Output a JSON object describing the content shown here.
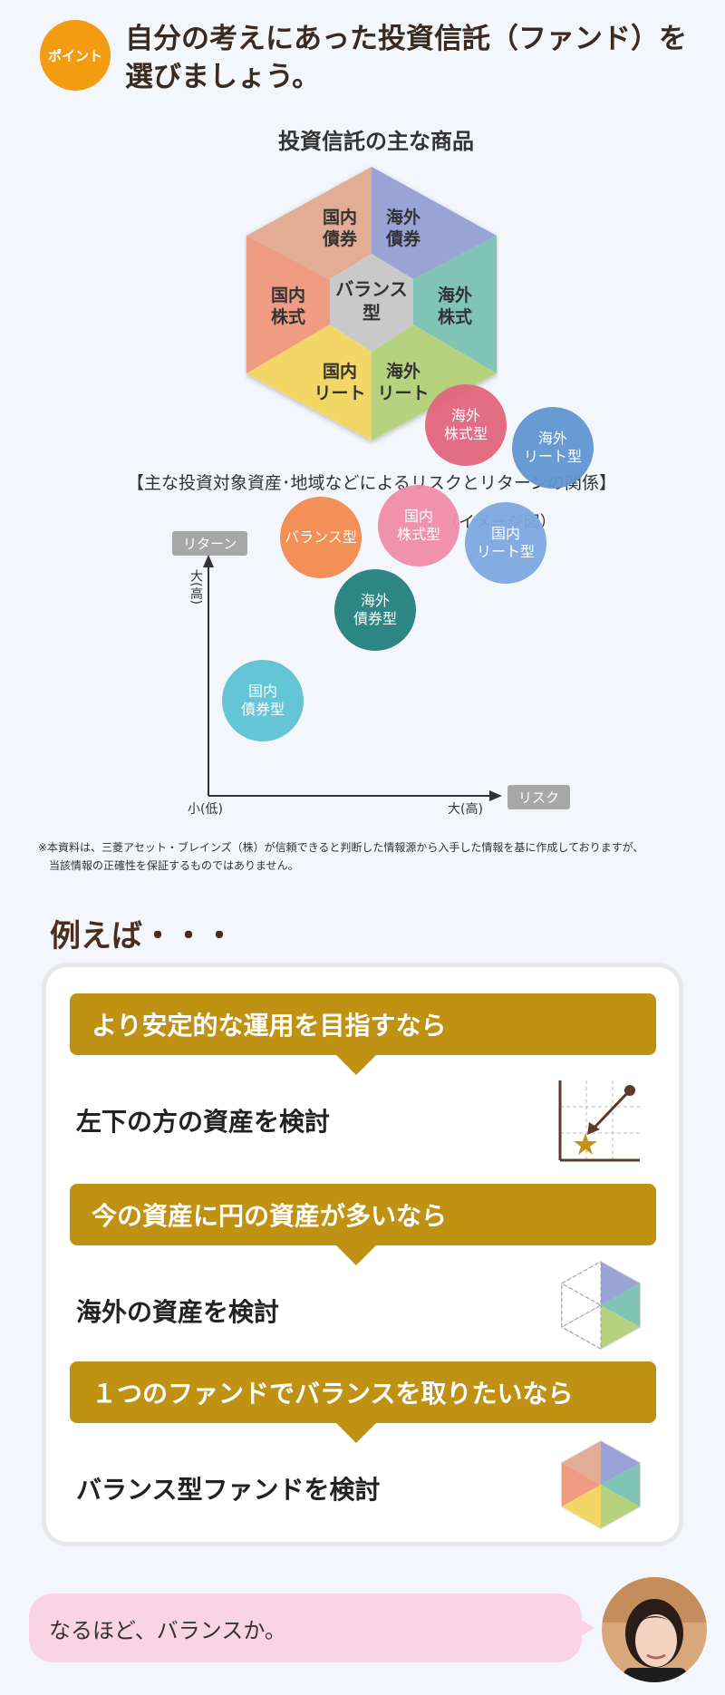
{
  "header": {
    "badge": "ポイント",
    "title_line1": "自分の考えにあった投資信託（ファンド）を",
    "title_line2": "選びましょう。"
  },
  "hexagon": {
    "title": "投資信託の主な商品",
    "center": [
      "バランス",
      "型"
    ],
    "segments": [
      {
        "lines": [
          "国内",
          "債券"
        ],
        "color": "#e3ad95"
      },
      {
        "lines": [
          "海外",
          "債券"
        ],
        "color": "#9aa3d6"
      },
      {
        "lines": [
          "海外",
          "株式"
        ],
        "color": "#7fc4b5"
      },
      {
        "lines": [
          "海外",
          "リート"
        ],
        "color": "#b6d27f"
      },
      {
        "lines": [
          "国内",
          "リート"
        ],
        "color": "#f2d766"
      },
      {
        "lines": [
          "国内",
          "株式"
        ],
        "color": "#ef9c83"
      }
    ]
  },
  "chart": {
    "caption": "【主な投資対象資産･地域などによるリスクとリターンの関係】",
    "image_label": "（イメージ図）",
    "y_axis_tag": "リターン",
    "x_axis_tag": "リスク",
    "y_high": "大(高)",
    "origin_low": "小(低)",
    "x_high": "大(高)"
  },
  "chart_data": {
    "type": "scatter",
    "xlabel": "リスク",
    "ylabel": "リターン",
    "points": [
      {
        "label": "国内債券型",
        "x": 1.5,
        "y": 1.7,
        "color": "#5cc3d3"
      },
      {
        "label": "バランス型",
        "x": 3.1,
        "y": 4.6,
        "color": "#f28b4f"
      },
      {
        "label": "海外債券型",
        "x": 4.6,
        "y": 3.3,
        "color": "#23807e"
      },
      {
        "label": "国内株式型",
        "x": 5.8,
        "y": 4.8,
        "color": "#f08ca9"
      },
      {
        "label": "国内リート型",
        "x": 8.2,
        "y": 4.5,
        "color": "#7ea8e0"
      },
      {
        "label": "海外株式型",
        "x": 7.1,
        "y": 6.6,
        "color": "#e3667d"
      },
      {
        "label": "海外リート型",
        "x": 9.5,
        "y": 6.2,
        "color": "#6196d1"
      }
    ]
  },
  "note": {
    "line1": "※本資料は、三菱アセット・ブレインズ（株）が信頼できると判断した情報源から入手した情報を基に作成しておりますが、",
    "line2": "当該情報の正確性を保証するものではありません。"
  },
  "examples": {
    "heading": "例えば・・・",
    "items": [
      {
        "condition": "より安定的な運用を目指すなら",
        "suggestion": "左下の方の資産を検討",
        "icon": "mini-chart-icon"
      },
      {
        "condition": "今の資産に円の資産が多いなら",
        "suggestion": "海外の資産を検討",
        "icon": "half-hexagon-icon"
      },
      {
        "condition": "１つのファンドでバランスを取りたいなら",
        "suggestion": "バランス型ファンドを検討",
        "icon": "full-hexagon-icon"
      }
    ]
  },
  "speech": {
    "text": "なるほど、バランスか。"
  }
}
